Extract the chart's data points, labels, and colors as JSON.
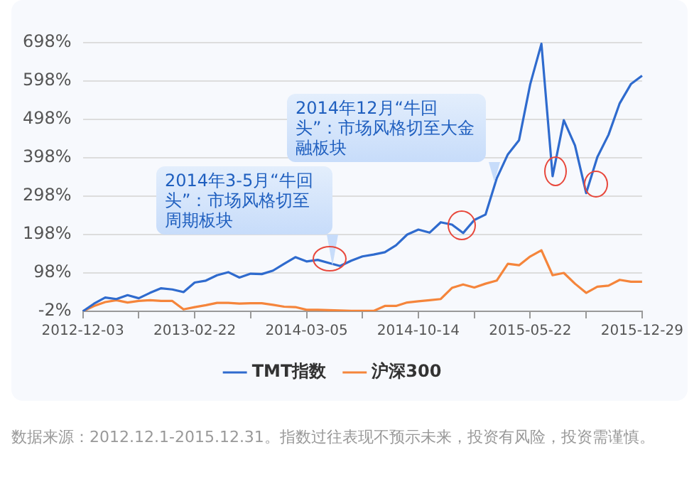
{
  "chart_data": {
    "type": "line",
    "categories": [
      "2012-12-03",
      null,
      null,
      null,
      null,
      null,
      null,
      null,
      null,
      null,
      "2013-02-22",
      null,
      null,
      null,
      null,
      null,
      null,
      null,
      null,
      null,
      "2014-03-05",
      null,
      null,
      null,
      null,
      null,
      null,
      null,
      null,
      null,
      "2014-10-14",
      null,
      null,
      null,
      null,
      null,
      null,
      null,
      null,
      null,
      "2015-05-22",
      null,
      null,
      null,
      null,
      null,
      null,
      null,
      null,
      null,
      "2015-12-29"
    ],
    "series": [
      {
        "name": "TMT指数",
        "color": "#2f6bce",
        "values": [
          -2,
          18,
          34,
          30,
          40,
          32,
          46,
          58,
          55,
          48,
          73,
          78,
          92,
          100,
          86,
          96,
          95,
          104,
          122,
          139,
          128,
          132,
          124,
          116,
          130,
          141,
          146,
          152,
          170,
          198,
          211,
          203,
          230,
          224,
          202,
          236,
          250,
          344,
          407,
          444,
          590,
          695,
          350,
          496,
          430,
          306,
          400,
          458,
          540,
          590,
          612
        ]
      },
      {
        "name": "沪深300",
        "color": "#f5853b",
        "values": [
          -2,
          12,
          22,
          27,
          21,
          25,
          27,
          25,
          25,
          3,
          9,
          14,
          20,
          20,
          18,
          19,
          19,
          15,
          10,
          9,
          2,
          2,
          1,
          0,
          -1,
          -1,
          -1,
          12,
          12,
          21,
          24,
          27,
          30,
          59,
          68,
          60,
          70,
          78,
          122,
          118,
          141,
          157,
          92,
          98,
          70,
          46,
          62,
          65,
          80,
          75,
          75
        ]
      }
    ],
    "ylim": [
      -2,
      698
    ],
    "yticks": [
      {
        "value": -2,
        "label": "-2%"
      },
      {
        "value": 98,
        "label": "98%"
      },
      {
        "value": 198,
        "label": "198%"
      },
      {
        "value": 298,
        "label": "298%"
      },
      {
        "value": 398,
        "label": "398%"
      },
      {
        "value": 498,
        "label": "498%"
      },
      {
        "value": 598,
        "label": "598%"
      },
      {
        "value": 698,
        "label": "698%"
      }
    ],
    "grid": "y",
    "legend": "bottom",
    "line_style": "solid",
    "annotations": [
      "2014年3-5月“牛回头”：市场风格切至周期板块",
      "2014年12月“牛回头”：市场风格切至大金融板块",
      "数据来源：2012.12.1-2015.12.31。指数过往表现不预示未来，投资有风险，投资需谨慎。"
    ]
  }
}
